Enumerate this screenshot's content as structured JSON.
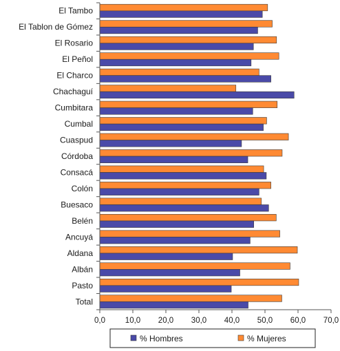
{
  "chart_data": {
    "type": "bar",
    "orientation": "horizontal",
    "categories": [
      "El Tambo",
      "El Tablon de Gómez",
      "El Rosario",
      "El Peñol",
      "El Charco",
      "Chachaguí",
      "Cumbitara",
      "Cumbal",
      "Cuaspud",
      "Córdoba",
      "Consacá",
      "Colón",
      "Buesaco",
      "Belén",
      "Ancuyá",
      "Aldana",
      "Albán",
      "Pasto",
      "Total"
    ],
    "series": [
      {
        "name": "% Hombres",
        "color": "#4a4aa8",
        "values": [
          49.2,
          47.8,
          46.5,
          45.8,
          51.8,
          58.8,
          46.3,
          49.5,
          42.9,
          44.8,
          50.4,
          48.2,
          51.1,
          46.6,
          45.5,
          40.2,
          42.4,
          39.8,
          44.9
        ]
      },
      {
        "name": "% Mujeres",
        "color": "#ff8a33",
        "values": [
          50.8,
          52.2,
          53.5,
          54.2,
          48.2,
          41.2,
          53.7,
          50.5,
          57.1,
          55.2,
          49.6,
          51.8,
          48.9,
          53.4,
          54.5,
          59.8,
          57.6,
          60.2,
          55.1
        ]
      }
    ],
    "xlim": [
      0,
      70
    ],
    "xticks": [
      "0,0",
      "10,0",
      "20,0",
      "30,0",
      "40,0",
      "50,0",
      "60,0",
      "70,0"
    ],
    "grid": false,
    "legend_position": "bottom",
    "title": "",
    "xlabel": "",
    "ylabel": ""
  }
}
